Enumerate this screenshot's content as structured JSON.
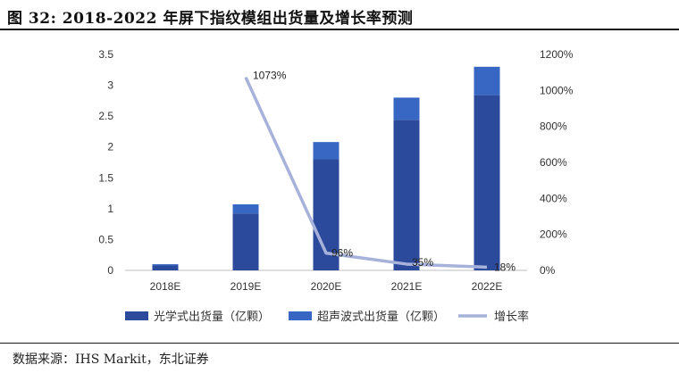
{
  "title": "图 32: 2018-2022 年屏下指纹模组出货量及增长率预测",
  "source": "数据来源：IHS Markit，东北证券",
  "colors": {
    "optical": "#2b4a9b",
    "ultrasonic": "#3866c3",
    "growth": "#a7b2db"
  },
  "chart_data": {
    "type": "bar",
    "title": "2018-2022 年屏下指纹模组出货量及增长率预测",
    "categories": [
      "2018E",
      "2019E",
      "2020E",
      "2021E",
      "2022E"
    ],
    "series": [
      {
        "name": "光学式出货量（亿颗）",
        "type": "stacked-bar",
        "axis": "left",
        "values": [
          0.08,
          0.92,
          1.8,
          2.44,
          2.84
        ]
      },
      {
        "name": "超声波式出货量（亿颗）",
        "type": "stacked-bar",
        "axis": "left",
        "values": [
          0.02,
          0.15,
          0.28,
          0.36,
          0.46
        ]
      },
      {
        "name": "增长率",
        "type": "line",
        "axis": "right",
        "values": [
          null,
          1073,
          96,
          35,
          18
        ],
        "labels": [
          "",
          "1073%",
          "96%",
          "35%",
          "18%"
        ]
      }
    ],
    "y_left": {
      "min": 0,
      "max": 3.5,
      "ticks": [
        "0",
        "0.5",
        "1",
        "1.5",
        "2",
        "2.5",
        "3",
        "3.5"
      ]
    },
    "y_right": {
      "min": 0,
      "max": 1200,
      "ticks": [
        "0%",
        "200%",
        "400%",
        "600%",
        "800%",
        "1000%",
        "1200%"
      ]
    },
    "legend": [
      "光学式出货量（亿颗）",
      "超声波式出货量（亿颗）",
      "增长率"
    ],
    "legend_position": "bottom"
  }
}
